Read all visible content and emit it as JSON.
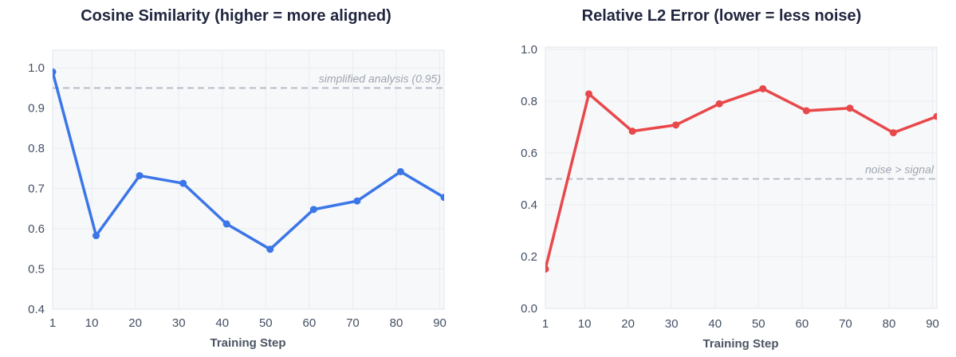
{
  "figure": {
    "background": "#ffffff",
    "description": "Two side-by-side line charts over training steps"
  },
  "style_colors": {
    "title": "#20263f",
    "tick_label": "#434f63",
    "axis_label": "#4b5563",
    "annotation": "#9fa5b0",
    "plot_bg": "#f7f8fa",
    "grid": "#e9ecf1",
    "plot_border": "#e1e4ea",
    "reference_line": "#b3b9c4",
    "left_series": "#3b76e8",
    "right_series": "#e8484a"
  },
  "chart_data": [
    {
      "type": "line",
      "title": "Cosine Similarity (higher = more aligned)",
      "xlabel": "Training Step",
      "ylabel": "",
      "series_name": "cosine-similarity",
      "line_color": "#3b76e8",
      "x": [
        1,
        11,
        21,
        31,
        41,
        51,
        61,
        71,
        81,
        91
      ],
      "values": [
        0.99,
        0.583,
        0.732,
        0.713,
        0.612,
        0.549,
        0.648,
        0.669,
        0.742,
        0.678
      ],
      "xlim": [
        1,
        91
      ],
      "ylim": [
        0.4,
        1.044
      ],
      "xticks": [
        1,
        10,
        20,
        30,
        40,
        50,
        60,
        70,
        80,
        90
      ],
      "xtick_labels": [
        "1",
        "10",
        "20",
        "30",
        "40",
        "50",
        "60",
        "70",
        "80",
        "90"
      ],
      "ytick_values": [
        0.4,
        0.5,
        0.6,
        0.7,
        0.8,
        0.9,
        1.0
      ],
      "ytick_labels": [
        "0.4",
        "0.5",
        "0.6",
        "0.7",
        "0.8",
        "0.9",
        "1.0"
      ],
      "grid": true,
      "legend": "none",
      "reference_line": {
        "value": 0.95,
        "label": "simplified analysis (0.95)",
        "style": "dashed",
        "color": "#b3b9c4"
      }
    },
    {
      "type": "line",
      "title": "Relative L2 Error (lower = less noise)",
      "xlabel": "Training Step",
      "ylabel": "",
      "series_name": "relative-l2-error",
      "line_color": "#e8484a",
      "x": [
        1,
        11,
        21,
        31,
        41,
        51,
        61,
        71,
        81,
        91
      ],
      "values": [
        0.152,
        0.828,
        0.684,
        0.708,
        0.79,
        0.848,
        0.763,
        0.773,
        0.678,
        0.741
      ],
      "xlim": [
        1,
        91
      ],
      "ylim": [
        0.0,
        1.009
      ],
      "xticks": [
        1,
        10,
        20,
        30,
        40,
        50,
        60,
        70,
        80,
        90
      ],
      "xtick_labels": [
        "1",
        "10",
        "20",
        "30",
        "40",
        "50",
        "60",
        "70",
        "80",
        "90"
      ],
      "ytick_values": [
        0.0,
        0.2,
        0.4,
        0.6,
        0.8,
        1.0
      ],
      "ytick_labels": [
        "0.0",
        "0.2",
        "0.4",
        "0.6",
        "0.8",
        "1.0"
      ],
      "grid": true,
      "legend": "none",
      "reference_line": {
        "value": 0.5,
        "label": "noise > signal",
        "style": "dashed",
        "color": "#b3b9c4"
      }
    }
  ]
}
